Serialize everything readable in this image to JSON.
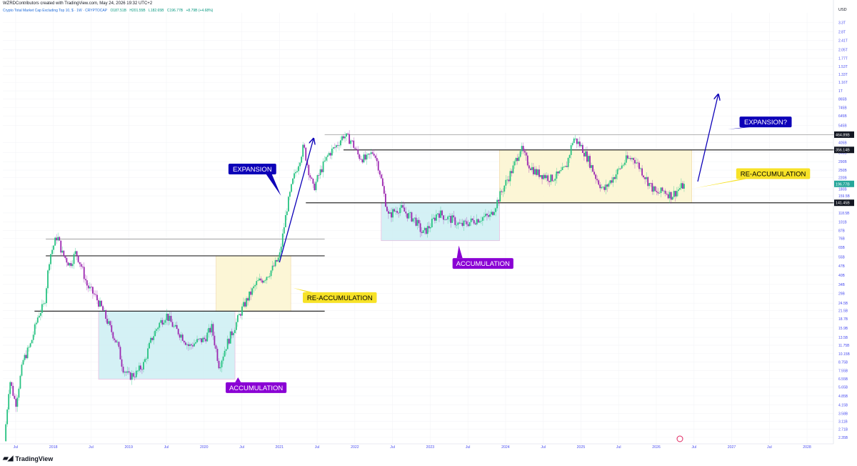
{
  "header": {
    "attribution": "WZRDContributors created with TradingView.com, May 24, 2026 19:32 UTC+2",
    "symbol": "Crypto Total Market Cap Excluding Top 10, $ · 1W · CRYPTOCAP",
    "open": "O187.51B",
    "high": "H201.55B",
    "low": "L182.65B",
    "close": "C196.77B",
    "change": "+8.79B (+4.68%)"
  },
  "footer": {
    "brand": "TradingView"
  },
  "colors": {
    "candle_up": "#26c281",
    "candle_down": "#9c27b0",
    "accumulation_zone": "#cdeef3",
    "reaccumulation_zone": "#fbf5cf",
    "expansion_label": "#0d00b8",
    "accumulation_label": "#8a00d4",
    "reaccumulation_label": "#f7e227",
    "axis_text": "#4b4ff0"
  },
  "chart_data": {
    "type": "candlestick",
    "title": "Crypto Total Market Cap Excluding Top 10, $",
    "interval": "1W",
    "y_scale": "log",
    "y_unit": "USD",
    "x_ticks": [
      "Jul",
      "2018",
      "Jul",
      "2019",
      "Jul",
      "2020",
      "Jul",
      "2021",
      "Jul",
      "2022",
      "Jul",
      "2023",
      "Jul",
      "2024",
      "Jul",
      "2025",
      "Jul",
      "2026",
      "Jul",
      "2027",
      "Jul",
      "2028"
    ],
    "x_tick_years": [
      2017.5,
      2018,
      2018.5,
      2019,
      2019.5,
      2020,
      2020.5,
      2021,
      2021.5,
      2022,
      2022.5,
      2023,
      2023.5,
      2024,
      2024.5,
      2025,
      2025.5,
      2026,
      2026.5,
      2027,
      2027.5,
      2028
    ],
    "y_ticks": [
      "3.3T",
      "2.8T",
      "2.41T",
      "2.05T",
      "1.77T",
      "1.53T",
      "1.33T",
      "1.16T",
      "1T",
      "865B",
      "745B",
      "645B",
      "545B",
      "405B",
      "340B",
      "290B",
      "250B",
      "220B",
      "180B",
      "159.5B",
      "118.5B",
      "101B",
      "87B",
      "76B",
      "65B",
      "55B",
      "47B",
      "40B",
      "34B",
      "29B",
      "24.5B",
      "21.5B",
      "18.7B",
      "15.9B",
      "13.5B",
      "11.75B",
      "10.15B",
      "8.75B",
      "7.55B",
      "6.55B",
      "5.65B",
      "4.85B",
      "4.15B",
      "3.58B",
      "3.11B",
      "2.71B",
      "2.35B"
    ],
    "y_tick_values": [
      3300,
      2800,
      2410,
      2050,
      1770,
      1530,
      1330,
      1160,
      1000,
      865,
      745,
      645,
      545,
      405,
      340,
      290,
      250,
      220,
      180,
      159.5,
      118.5,
      101,
      87,
      76,
      65,
      55,
      47,
      40,
      34,
      29,
      24.5,
      21.5,
      18.7,
      15.9,
      13.5,
      11.75,
      10.15,
      8.75,
      7.55,
      6.55,
      5.65,
      4.85,
      4.15,
      3.58,
      3.11,
      2.71,
      2.35
    ],
    "y_range": [
      2.1,
      3900
    ],
    "x_range": [
      2017.33,
      2028.35
    ],
    "price_tags": [
      {
        "label": "464.89B",
        "value": 464.89,
        "style": "dark"
      },
      {
        "label": "356.14B",
        "value": 356.14,
        "style": "dark"
      },
      {
        "label": "196.77B",
        "value": 196.77,
        "style": "green"
      },
      {
        "label": "141.45B",
        "value": 141.45,
        "style": "dark"
      }
    ],
    "price_path": [
      [
        2017.35,
        2.2
      ],
      [
        2017.42,
        6.5
      ],
      [
        2017.5,
        4.2
      ],
      [
        2017.6,
        9
      ],
      [
        2017.7,
        12
      ],
      [
        2017.8,
        20
      ],
      [
        2017.88,
        24
      ],
      [
        2017.95,
        55
      ],
      [
        2018.05,
        80
      ],
      [
        2018.12,
        58
      ],
      [
        2018.22,
        48
      ],
      [
        2018.3,
        60
      ],
      [
        2018.38,
        45
      ],
      [
        2018.45,
        33
      ],
      [
        2018.55,
        28
      ],
      [
        2018.65,
        22
      ],
      [
        2018.75,
        16
      ],
      [
        2018.85,
        12
      ],
      [
        2018.92,
        8
      ],
      [
        2019.0,
        6.8
      ],
      [
        2019.1,
        7.2
      ],
      [
        2019.2,
        8.5
      ],
      [
        2019.3,
        13
      ],
      [
        2019.4,
        17
      ],
      [
        2019.5,
        20
      ],
      [
        2019.6,
        16
      ],
      [
        2019.7,
        14
      ],
      [
        2019.8,
        11.5
      ],
      [
        2019.9,
        12.5
      ],
      [
        2020.0,
        13
      ],
      [
        2020.1,
        16
      ],
      [
        2020.2,
        8.2
      ],
      [
        2020.3,
        12
      ],
      [
        2020.4,
        16
      ],
      [
        2020.5,
        22
      ],
      [
        2020.6,
        28
      ],
      [
        2020.7,
        35
      ],
      [
        2020.8,
        38
      ],
      [
        2020.9,
        44
      ],
      [
        2021.0,
        55
      ],
      [
        2021.05,
        85
      ],
      [
        2021.1,
        130
      ],
      [
        2021.18,
        210
      ],
      [
        2021.25,
        280
      ],
      [
        2021.32,
        380
      ],
      [
        2021.38,
        260
      ],
      [
        2021.45,
        180
      ],
      [
        2021.55,
        250
      ],
      [
        2021.65,
        330
      ],
      [
        2021.75,
        380
      ],
      [
        2021.85,
        460
      ],
      [
        2021.95,
        420
      ],
      [
        2022.05,
        320
      ],
      [
        2022.15,
        300
      ],
      [
        2022.25,
        350
      ],
      [
        2022.32,
        260
      ],
      [
        2022.4,
        150
      ],
      [
        2022.45,
        110
      ],
      [
        2022.5,
        120
      ],
      [
        2022.6,
        130
      ],
      [
        2022.7,
        115
      ],
      [
        2022.8,
        105
      ],
      [
        2022.9,
        82
      ],
      [
        2023.0,
        95
      ],
      [
        2023.1,
        120
      ],
      [
        2023.2,
        110
      ],
      [
        2023.3,
        105
      ],
      [
        2023.4,
        95
      ],
      [
        2023.5,
        100
      ],
      [
        2023.6,
        105
      ],
      [
        2023.7,
        110
      ],
      [
        2023.8,
        112
      ],
      [
        2023.9,
        150
      ],
      [
        2024.0,
        200
      ],
      [
        2024.1,
        260
      ],
      [
        2024.2,
        370
      ],
      [
        2024.3,
        280
      ],
      [
        2024.4,
        240
      ],
      [
        2024.5,
        230
      ],
      [
        2024.6,
        215
      ],
      [
        2024.7,
        230
      ],
      [
        2024.8,
        260
      ],
      [
        2024.9,
        440
      ],
      [
        2025.0,
        380
      ],
      [
        2025.1,
        300
      ],
      [
        2025.2,
        220
      ],
      [
        2025.3,
        175
      ],
      [
        2025.4,
        210
      ],
      [
        2025.5,
        250
      ],
      [
        2025.6,
        300
      ],
      [
        2025.7,
        310
      ],
      [
        2025.8,
        250
      ],
      [
        2025.9,
        200
      ],
      [
        2026.0,
        165
      ],
      [
        2026.1,
        175
      ],
      [
        2026.2,
        160
      ],
      [
        2026.3,
        180
      ],
      [
        2026.38,
        196.77
      ]
    ]
  },
  "annotations": {
    "boxes": [
      {
        "kind": "accumulation",
        "x0": 2018.6,
        "x1": 2020.41,
        "y0": 6.5,
        "y1": 21.3
      },
      {
        "kind": "reaccumulation",
        "x0": 2020.16,
        "x1": 2021.15,
        "y0": 21.3,
        "y1": 56
      },
      {
        "kind": "accumulation",
        "x0": 2022.35,
        "x1": 2023.92,
        "y0": 73,
        "y1": 141.45
      },
      {
        "kind": "reaccumulation",
        "x0": 2023.92,
        "x1": 2026.47,
        "y0": 141.45,
        "y1": 356.14
      }
    ],
    "hlines": [
      {
        "x0": 2017.9,
        "x1": 2021.6,
        "y": 75,
        "color": "#9a9a9a",
        "w": 0.8
      },
      {
        "x0": 2017.9,
        "x1": 2021.6,
        "y": 56,
        "color": "#2b2b2b",
        "w": 1.2
      },
      {
        "x0": 2017.75,
        "x1": 2021.6,
        "y": 21.3,
        "color": "#2b2b2b",
        "w": 1.2
      },
      {
        "x0": 2021.6,
        "x1": 2028.55,
        "y": 464.89,
        "color": "#9a9a9a",
        "w": 0.8
      },
      {
        "x0": 2021.85,
        "x1": 2028.55,
        "y": 356.14,
        "color": "#2b2b2b",
        "w": 1.2
      },
      {
        "x0": 2021.35,
        "x1": 2028.55,
        "y": 141.45,
        "color": "#2b2b2b",
        "w": 1.2
      }
    ],
    "arrows": [
      {
        "x0": 2021.0,
        "y0": 50,
        "x1": 2021.45,
        "y1": 430
      },
      {
        "x0": 2026.55,
        "y0": 205,
        "x1": 2026.82,
        "y1": 930
      }
    ],
    "labels": [
      {
        "kind": "expansion",
        "text": "EXPANSION",
        "x": 2020.64,
        "y": 255,
        "tail": [
          2021.02,
          160
        ]
      },
      {
        "kind": "accumulation",
        "text": "ACCUMULATION",
        "x": 2020.69,
        "y": 5.6,
        "tail": [
          2020.45,
          6.7
        ]
      },
      {
        "kind": "reaccumulation",
        "text": "RE-ACCUMULATION",
        "x": 2021.8,
        "y": 27,
        "tail": [
          2021.18,
          32
        ]
      },
      {
        "kind": "accumulation",
        "text": "ACCUMULATION",
        "x": 2023.7,
        "y": 49,
        "tail": [
          2023.38,
          67
        ]
      },
      {
        "kind": "reaccumulation",
        "text": "RE-ACCUMULATION",
        "x": 2027.55,
        "y": 235,
        "tail": [
          2026.5,
          182
        ]
      },
      {
        "kind": "expansion",
        "text": "EXPANSION?",
        "x": 2027.45,
        "y": 580,
        "tail": [
          2026.95,
          510
        ]
      }
    ]
  }
}
